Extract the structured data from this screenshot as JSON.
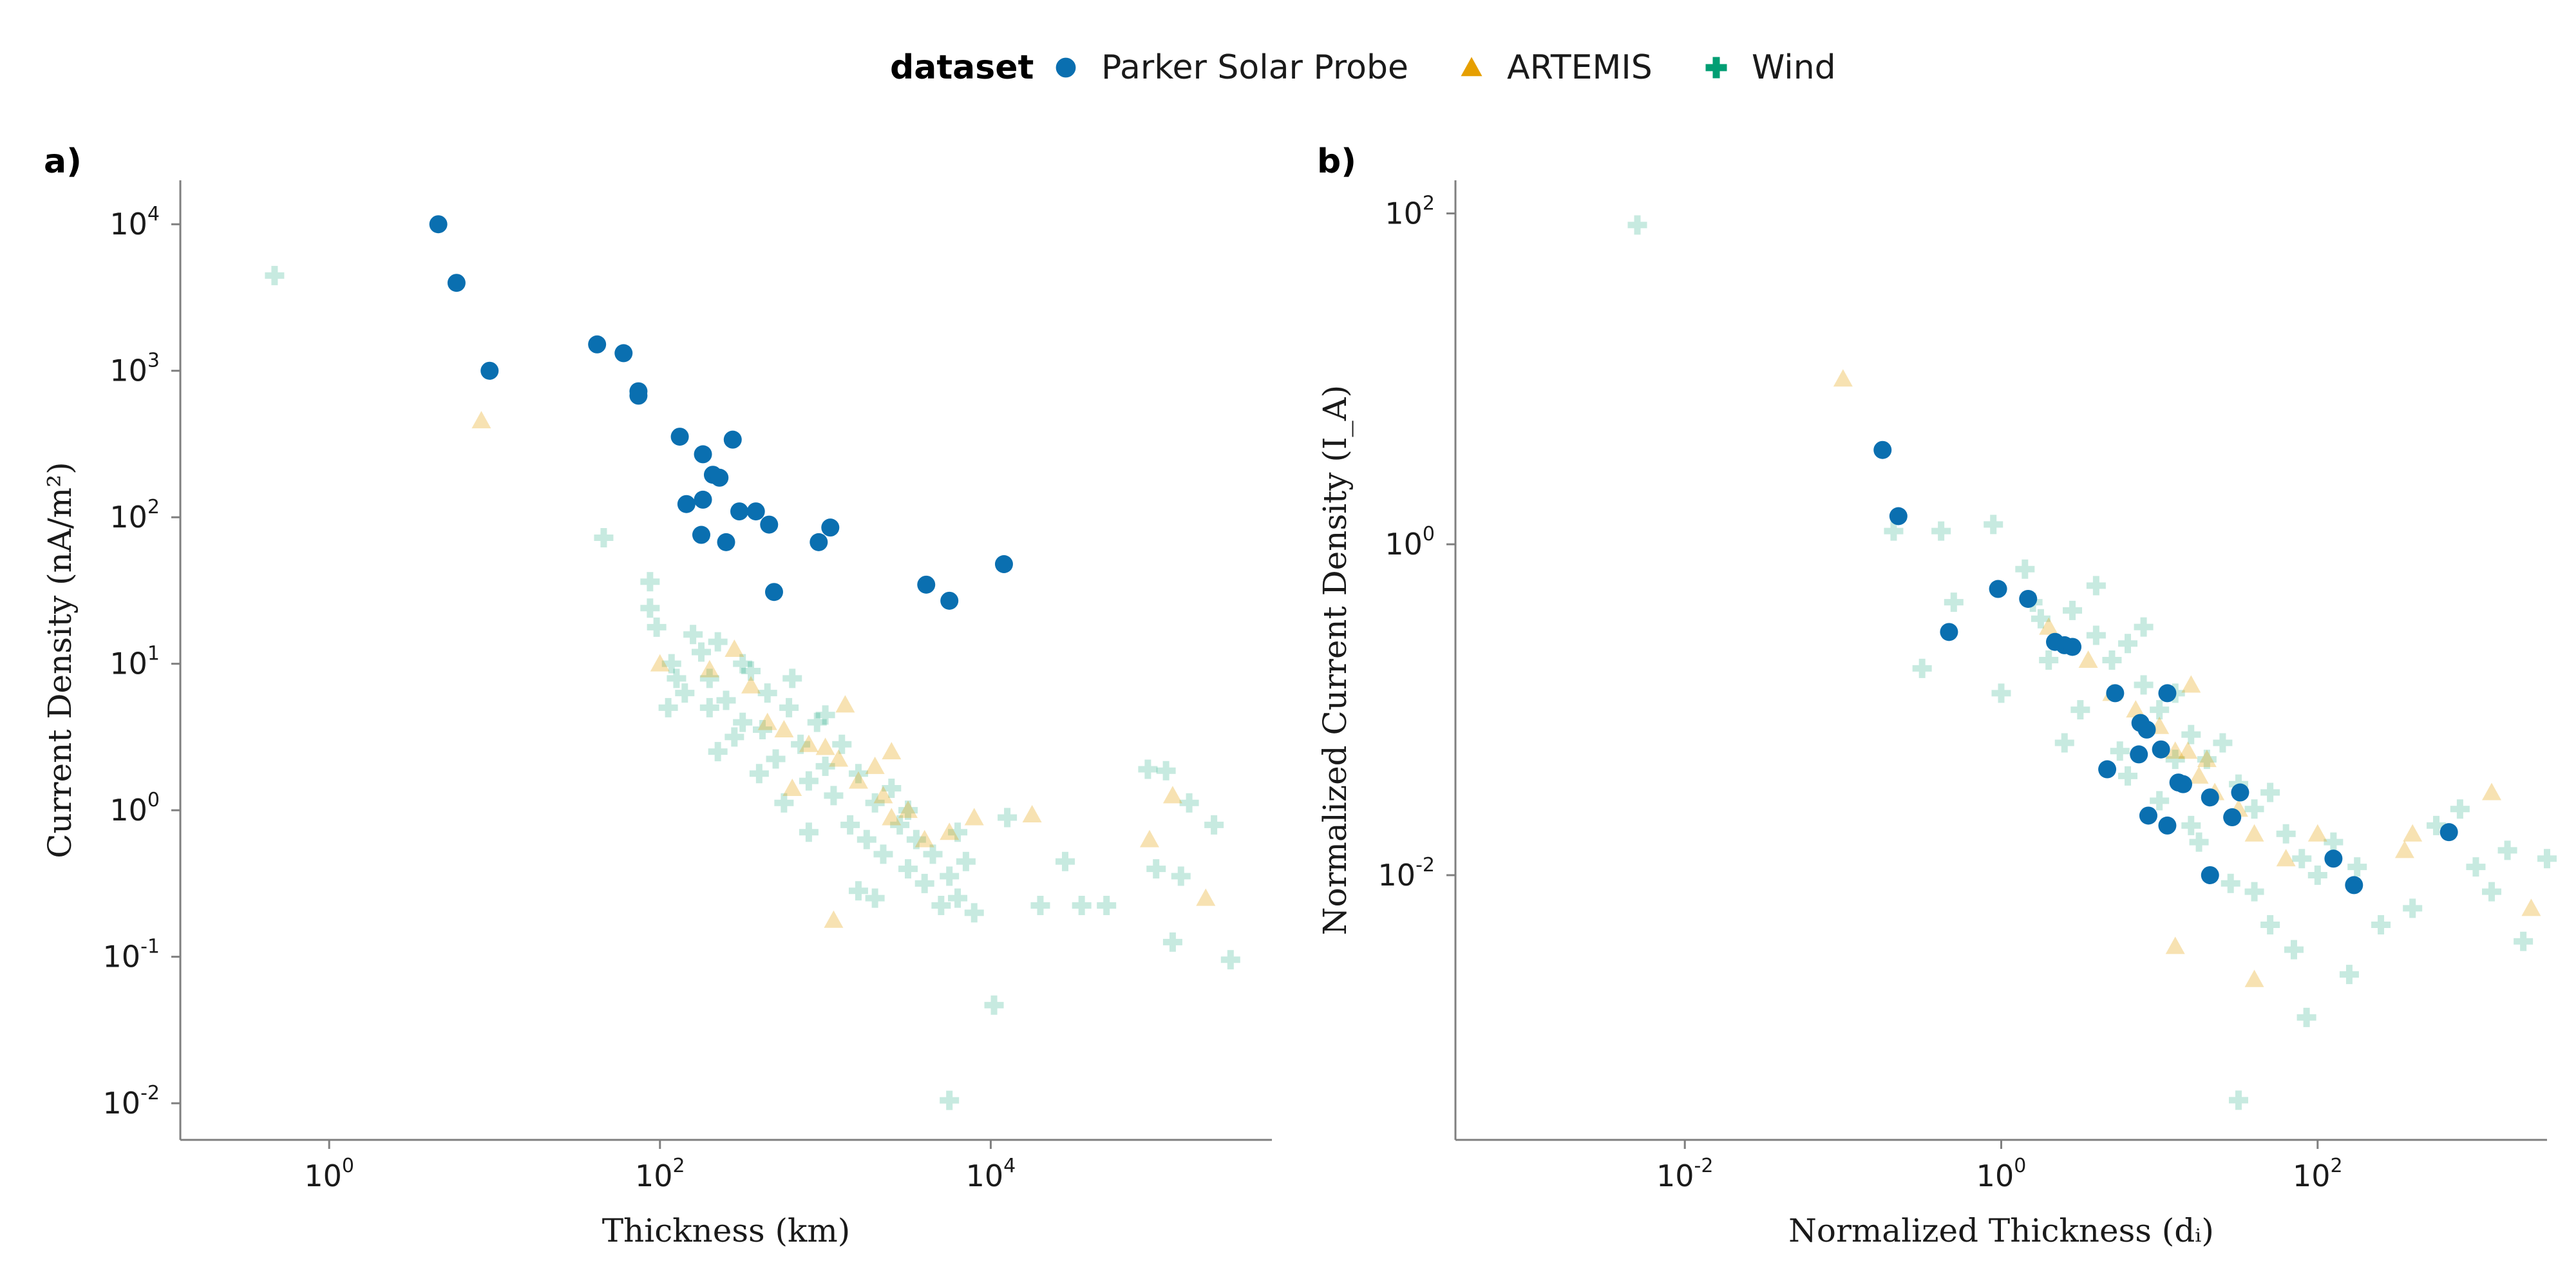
{
  "legend": {
    "title": "dataset",
    "entries": [
      {
        "name": "Parker Solar Probe",
        "marker": "circle",
        "color": "#0a6fb0"
      },
      {
        "name": "ARTEMIS",
        "marker": "triangle",
        "color": "#e69f00"
      },
      {
        "name": "Wind",
        "marker": "cross",
        "color": "#009e73"
      }
    ]
  },
  "chart_data": [
    {
      "type": "scatter",
      "panel_label": "a)",
      "xlabel": "Thickness (km)",
      "ylabel": "Current Density (nA/m²)",
      "xscale": "log",
      "yscale": "log",
      "xlim_log10": [
        -0.9,
        5.7
      ],
      "ylim_log10": [
        -2.25,
        4.3
      ],
      "xticks_exp": [
        0,
        2,
        4
      ],
      "yticks_exp": [
        -2,
        -1,
        0,
        1,
        2,
        3,
        4
      ],
      "tick_base": "10",
      "grid": false,
      "series": [
        {
          "name": "Parker Solar Probe",
          "points_log10": [
            [
              0.66,
              4.0
            ],
            [
              0.77,
              3.6
            ],
            [
              0.97,
              3.0
            ],
            [
              1.62,
              3.18
            ],
            [
              1.78,
              3.12
            ],
            [
              1.87,
              2.86
            ],
            [
              1.87,
              2.83
            ],
            [
              2.12,
              2.55
            ],
            [
              2.26,
              2.43
            ],
            [
              2.32,
              2.29
            ],
            [
              2.36,
              2.27
            ],
            [
              2.44,
              2.53
            ],
            [
              2.26,
              2.12
            ],
            [
              2.16,
              2.09
            ],
            [
              2.25,
              1.88
            ],
            [
              2.4,
              1.83
            ],
            [
              2.48,
              2.04
            ],
            [
              2.58,
              2.04
            ],
            [
              2.66,
              1.95
            ],
            [
              2.69,
              1.49
            ],
            [
              2.96,
              1.83
            ],
            [
              3.03,
              1.93
            ],
            [
              3.61,
              1.54
            ],
            [
              3.75,
              1.43
            ],
            [
              4.08,
              1.68
            ]
          ]
        },
        {
          "name": "ARTEMIS",
          "points_log10": [
            [
              0.92,
              2.66
            ],
            [
              2.0,
              1.0
            ],
            [
              2.3,
              0.96
            ],
            [
              2.45,
              1.1
            ],
            [
              2.55,
              0.85
            ],
            [
              2.65,
              0.6
            ],
            [
              2.75,
              0.55
            ],
            [
              2.9,
              0.45
            ],
            [
              3.0,
              0.43
            ],
            [
              3.08,
              0.35
            ],
            [
              3.12,
              0.72
            ],
            [
              3.2,
              0.2
            ],
            [
              3.3,
              0.3
            ],
            [
              3.35,
              0.1
            ],
            [
              3.4,
              -0.05
            ],
            [
              3.5,
              0.0
            ],
            [
              3.6,
              -0.2
            ],
            [
              3.75,
              -0.15
            ],
            [
              3.9,
              -0.05
            ],
            [
              4.25,
              -0.03
            ],
            [
              4.96,
              -0.2
            ],
            [
              5.1,
              0.1
            ],
            [
              5.3,
              -0.6
            ],
            [
              3.05,
              -0.75
            ],
            [
              3.4,
              0.4
            ],
            [
              2.8,
              0.15
            ]
          ]
        },
        {
          "name": "Wind",
          "points_log10": [
            [
              -0.33,
              3.65
            ],
            [
              1.66,
              1.86
            ],
            [
              1.94,
              1.56
            ],
            [
              1.94,
              1.38
            ],
            [
              1.98,
              1.25
            ],
            [
              2.07,
              1.0
            ],
            [
              2.15,
              0.8
            ],
            [
              2.05,
              0.7
            ],
            [
              2.1,
              0.9
            ],
            [
              2.25,
              1.08
            ],
            [
              2.35,
              1.15
            ],
            [
              2.3,
              0.9
            ],
            [
              2.4,
              0.75
            ],
            [
              2.5,
              0.6
            ],
            [
              2.55,
              0.95
            ],
            [
              2.62,
              0.55
            ],
            [
              2.7,
              0.35
            ],
            [
              2.78,
              0.7
            ],
            [
              2.85,
              0.45
            ],
            [
              2.9,
              0.2
            ],
            [
              2.95,
              0.6
            ],
            [
              3.0,
              0.3
            ],
            [
              3.05,
              0.1
            ],
            [
              3.1,
              0.45
            ],
            [
              3.15,
              -0.1
            ],
            [
              3.2,
              0.25
            ],
            [
              3.25,
              -0.2
            ],
            [
              3.3,
              0.05
            ],
            [
              3.35,
              -0.3
            ],
            [
              3.4,
              0.15
            ],
            [
              3.45,
              -0.1
            ],
            [
              3.5,
              -0.4
            ],
            [
              3.55,
              -0.2
            ],
            [
              3.6,
              -0.5
            ],
            [
              3.65,
              -0.3
            ],
            [
              3.7,
              -0.65
            ],
            [
              3.75,
              -0.45
            ],
            [
              3.8,
              -0.6
            ],
            [
              3.85,
              -0.35
            ],
            [
              3.9,
              -0.7
            ],
            [
              4.1,
              -0.05
            ],
            [
              4.3,
              -0.65
            ],
            [
              4.45,
              -0.35
            ],
            [
              4.55,
              -0.65
            ],
            [
              4.7,
              -0.65
            ],
            [
              4.95,
              0.28
            ],
            [
              5.06,
              0.27
            ],
            [
              5.2,
              0.05
            ],
            [
              5.15,
              -0.45
            ],
            [
              5.35,
              -0.1
            ],
            [
              5.0,
              -0.4
            ],
            [
              5.1,
              -0.9
            ],
            [
              5.45,
              -1.02
            ],
            [
              4.02,
              -1.33
            ],
            [
              3.75,
              -1.98
            ],
            [
              2.3,
              0.7
            ],
            [
              2.5,
              1.0
            ],
            [
              2.65,
              0.8
            ],
            [
              2.8,
              0.9
            ],
            [
              3.0,
              0.65
            ],
            [
              2.45,
              0.5
            ],
            [
              2.6,
              0.25
            ],
            [
              2.75,
              0.05
            ],
            [
              2.2,
              1.2
            ],
            [
              2.35,
              0.4
            ],
            [
              3.2,
              -0.55
            ],
            [
              3.5,
              0.0
            ],
            [
              3.8,
              -0.15
            ],
            [
              2.9,
              -0.15
            ],
            [
              3.3,
              -0.6
            ]
          ]
        }
      ]
    },
    {
      "type": "scatter",
      "panel_label": "b)",
      "xlabel": "Normalized Thickness (dᵢ)",
      "ylabel": "Normalized Current Density (I_A)",
      "xscale": "log",
      "yscale": "log",
      "xlim_log10": [
        -3.45,
        3.45
      ],
      "ylim_log10": [
        -3.6,
        2.2
      ],
      "xticks_exp": [
        -2,
        0,
        2
      ],
      "yticks_exp": [
        -2,
        0,
        2
      ],
      "tick_base": "10",
      "grid": false,
      "series": [
        {
          "name": "Parker Solar Probe",
          "points_log10": [
            [
              -0.75,
              0.57
            ],
            [
              -0.65,
              0.17
            ],
            [
              -0.33,
              -0.53
            ],
            [
              -0.02,
              -0.27
            ],
            [
              0.17,
              -0.33
            ],
            [
              0.34,
              -0.59
            ],
            [
              0.4,
              -0.61
            ],
            [
              0.45,
              -0.62
            ],
            [
              0.72,
              -0.9
            ],
            [
              0.88,
              -1.08
            ],
            [
              0.92,
              -1.12
            ],
            [
              1.05,
              -0.9
            ],
            [
              1.01,
              -1.24
            ],
            [
              0.87,
              -1.27
            ],
            [
              0.67,
              -1.36
            ],
            [
              1.12,
              -1.44
            ],
            [
              1.15,
              -1.45
            ],
            [
              1.32,
              -1.53
            ],
            [
              0.93,
              -1.64
            ],
            [
              1.05,
              -1.7
            ],
            [
              1.46,
              -1.65
            ],
            [
              1.51,
              -1.5
            ],
            [
              1.32,
              -2.0
            ],
            [
              2.1,
              -1.9
            ],
            [
              2.23,
              -2.06
            ],
            [
              2.83,
              -1.74
            ]
          ]
        },
        {
          "name": "ARTEMIS",
          "points_log10": [
            [
              -1.0,
              1.0
            ],
            [
              0.3,
              -0.5
            ],
            [
              0.55,
              -0.7
            ],
            [
              0.7,
              -0.9
            ],
            [
              0.85,
              -1.0
            ],
            [
              1.0,
              -1.1
            ],
            [
              1.1,
              -1.25
            ],
            [
              1.18,
              -1.25
            ],
            [
              1.2,
              -0.85
            ],
            [
              1.25,
              -1.4
            ],
            [
              1.35,
              -1.5
            ],
            [
              1.5,
              -1.6
            ],
            [
              1.6,
              -1.75
            ],
            [
              1.8,
              -1.9
            ],
            [
              2.0,
              -1.75
            ],
            [
              2.55,
              -1.85
            ],
            [
              2.6,
              -1.75
            ],
            [
              3.1,
              -1.5
            ],
            [
              3.35,
              -2.2
            ],
            [
              1.1,
              -2.43
            ],
            [
              1.6,
              -2.63
            ],
            [
              1.3,
              -1.3
            ]
          ]
        },
        {
          "name": "Wind",
          "points_log10": [
            [
              -2.3,
              1.93
            ],
            [
              -0.68,
              0.08
            ],
            [
              -0.38,
              0.08
            ],
            [
              -0.05,
              0.12
            ],
            [
              0.2,
              -0.35
            ],
            [
              0.25,
              -0.45
            ],
            [
              0.45,
              -0.4
            ],
            [
              0.6,
              -0.55
            ],
            [
              0.7,
              -0.7
            ],
            [
              0.8,
              -0.6
            ],
            [
              0.9,
              -0.85
            ],
            [
              1.0,
              -1.0
            ],
            [
              1.1,
              -0.9
            ],
            [
              1.2,
              -1.15
            ],
            [
              1.3,
              -1.3
            ],
            [
              1.4,
              -1.2
            ],
            [
              1.5,
              -1.45
            ],
            [
              1.6,
              -1.6
            ],
            [
              1.7,
              -1.5
            ],
            [
              1.8,
              -1.75
            ],
            [
              1.9,
              -1.9
            ],
            [
              2.0,
              -2.0
            ],
            [
              2.1,
              -1.8
            ],
            [
              2.25,
              -1.95
            ],
            [
              2.4,
              -2.3
            ],
            [
              2.6,
              -2.2
            ],
            [
              2.75,
              -1.7
            ],
            [
              2.9,
              -1.6
            ],
            [
              3.0,
              -1.95
            ],
            [
              3.1,
              -2.1
            ],
            [
              3.2,
              -1.85
            ],
            [
              3.3,
              -2.4
            ],
            [
              3.45,
              -1.9
            ],
            [
              1.93,
              -2.86
            ],
            [
              1.5,
              -3.36
            ],
            [
              0.6,
              -0.25
            ],
            [
              0.9,
              -0.5
            ],
            [
              1.1,
              -1.3
            ],
            [
              0.3,
              -0.7
            ],
            [
              0.5,
              -1.0
            ],
            [
              0.75,
              -1.25
            ],
            [
              1.0,
              -1.55
            ],
            [
              1.25,
              -1.8
            ],
            [
              1.45,
              -2.05
            ],
            [
              1.7,
              -2.3
            ],
            [
              -0.5,
              -0.75
            ],
            [
              -0.3,
              -0.35
            ],
            [
              0.0,
              -0.9
            ],
            [
              0.4,
              -1.2
            ],
            [
              0.8,
              -1.4
            ],
            [
              1.2,
              -1.7
            ],
            [
              1.6,
              -2.1
            ],
            [
              1.85,
              -2.45
            ],
            [
              2.2,
              -2.6
            ],
            [
              0.15,
              -0.15
            ]
          ]
        }
      ]
    }
  ]
}
